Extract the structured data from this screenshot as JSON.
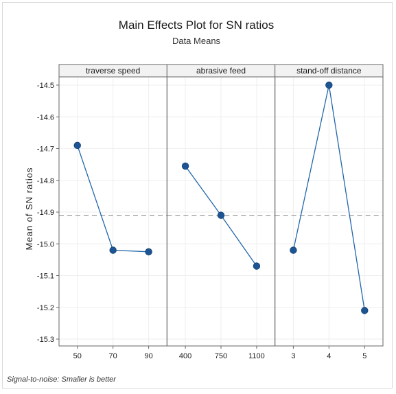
{
  "chart_data": {
    "type": "line",
    "title": "Main Effects Plot for SN ratios",
    "subtitle": "Data Means",
    "ylabel": "Mean of SN ratios",
    "ylim": [
      -15.3,
      -14.5
    ],
    "yticks": [
      "-14.5",
      "-14.6",
      "-14.7",
      "-14.8",
      "-14.9",
      "-15.0",
      "-15.1",
      "-15.2",
      "-15.3"
    ],
    "reference_line": -14.91,
    "grid": true,
    "footnote": "Signal-to-noise: Smaller is better",
    "panels": [
      {
        "name": "traverse speed",
        "categories": [
          "50",
          "70",
          "90"
        ],
        "values": [
          -14.69,
          -15.02,
          -15.025
        ]
      },
      {
        "name": "abrasive feed",
        "categories": [
          "400",
          "750",
          "1100"
        ],
        "values": [
          -14.755,
          -14.91,
          -15.07
        ]
      },
      {
        "name": "stand-off distance",
        "categories": [
          "3",
          "4",
          "5"
        ],
        "values": [
          -15.02,
          -14.5,
          -15.21
        ]
      }
    ]
  },
  "colors": {
    "line": "#2266aa",
    "marker": "#1d5594",
    "reference": "#9a9a9a",
    "grid": "#eeeeee",
    "strip": "#f2f2f2",
    "border": "#666666"
  }
}
